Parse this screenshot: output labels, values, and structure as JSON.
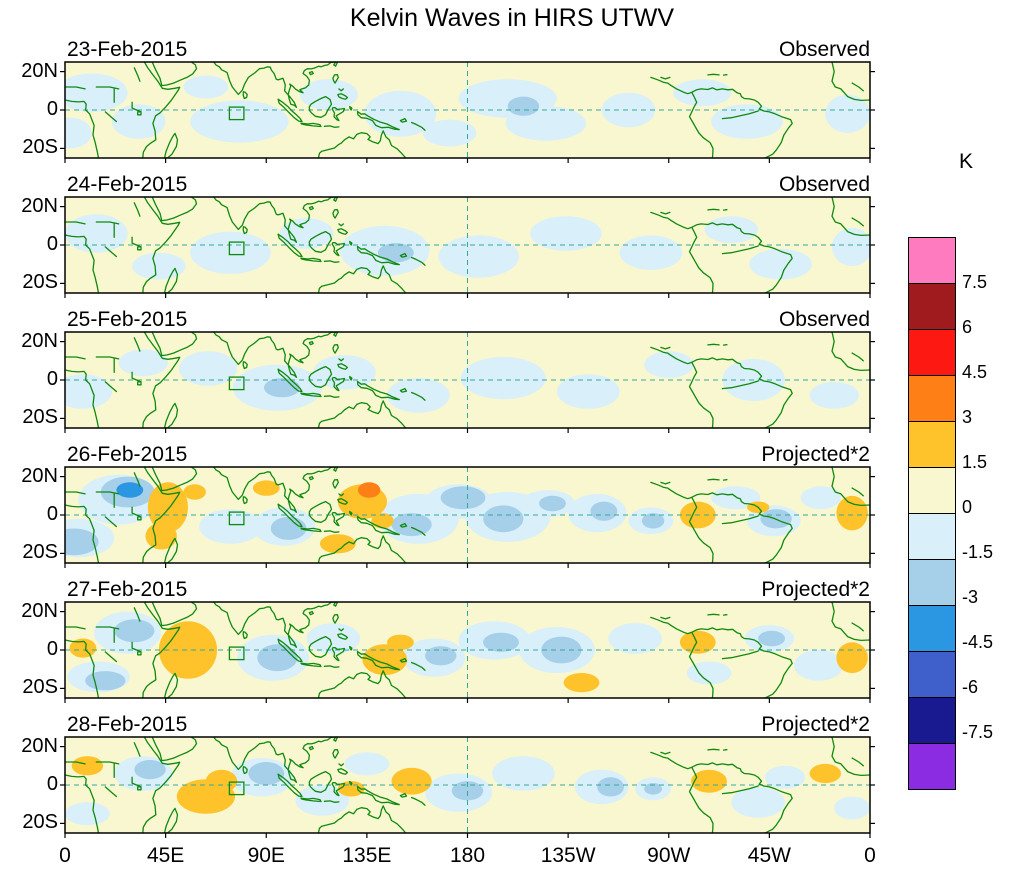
{
  "chart_data": {
    "type": "heatmap",
    "title": "Kelvin Waves in HIRS UTWV",
    "x_axis": {
      "tick_labels": [
        "0",
        "45E",
        "90E",
        "135E",
        "180",
        "135W",
        "90W",
        "45W",
        "0"
      ],
      "tick_lons": [
        0,
        45,
        90,
        135,
        180,
        225,
        270,
        315,
        360
      ]
    },
    "y_axis": {
      "tick_labels": [
        "20N",
        "0",
        "20S"
      ],
      "tick_lats": [
        20,
        0,
        -20
      ]
    },
    "colorbar": {
      "unit": "K",
      "tick_labels": [
        "7.5",
        "6",
        "4.5",
        "3",
        "1.5",
        "0",
        "-1.5",
        "-3",
        "-4.5",
        "-6",
        "-7.5"
      ],
      "colors": [
        "#ff7bc0",
        "#a01b1e",
        "#fd1812",
        "#fd7f16",
        "#fec32a",
        "#f9f7cf",
        "#d9effa",
        "#a6cfe9",
        "#2b96e2",
        "#3f5fcb",
        "#191a90",
        "#8b2be2"
      ]
    },
    "map": {
      "lon_range": [
        0,
        360
      ],
      "lat_range": [
        -25,
        25
      ],
      "roi_box_lon": [
        73.5,
        80
      ],
      "roi_box_lat": [
        -5,
        1.5
      ],
      "coast_color": "#0f8a0f",
      "grid_color": "#35a89c"
    },
    "anomalies_encoding": "each anomaly = [lon_deg_east, lat_deg, rx_deg, ry_deg, level]; level*1.5K color band, estimated from contour fills",
    "panels": [
      {
        "date": "23-Feb-2015",
        "source_label": "Observed",
        "anomalies": [
          [
            12,
            9,
            16,
            10,
            -1
          ],
          [
            2,
            -12,
            10,
            8,
            -1
          ],
          [
            33,
            -6,
            12,
            9,
            -1
          ],
          [
            63,
            12,
            10,
            6,
            -1
          ],
          [
            78,
            -6,
            22,
            11,
            -1
          ],
          [
            118,
            8,
            13,
            8,
            -1
          ],
          [
            150,
            -2,
            16,
            12,
            -1
          ],
          [
            172,
            -12,
            12,
            7,
            -1
          ],
          [
            198,
            6,
            22,
            10,
            -1
          ],
          [
            215,
            -7,
            18,
            9,
            -1
          ],
          [
            205,
            2,
            7,
            5,
            -2
          ],
          [
            252,
            0,
            12,
            9,
            -1
          ],
          [
            285,
            9,
            13,
            7,
            -1
          ],
          [
            305,
            -6,
            16,
            9,
            -1
          ],
          [
            350,
            -2,
            10,
            10,
            -1
          ]
        ]
      },
      {
        "date": "24-Feb-2015",
        "source_label": "Observed",
        "anomalies": [
          [
            14,
            6,
            14,
            10,
            -1
          ],
          [
            42,
            -11,
            12,
            7,
            -1
          ],
          [
            74,
            -4,
            18,
            11,
            -1
          ],
          [
            108,
            6,
            12,
            8,
            -1
          ],
          [
            143,
            -3,
            20,
            13,
            -1
          ],
          [
            148,
            -4,
            8,
            5,
            -2
          ],
          [
            185,
            -6,
            18,
            11,
            -1
          ],
          [
            224,
            6,
            16,
            9,
            -1
          ],
          [
            262,
            -4,
            14,
            9,
            -1
          ],
          [
            298,
            8,
            12,
            7,
            -1
          ],
          [
            320,
            -10,
            14,
            8,
            -1
          ],
          [
            352,
            -1,
            9,
            10,
            -1
          ]
        ]
      },
      {
        "date": "25-Feb-2015",
        "source_label": "Observed",
        "anomalies": [
          [
            8,
            -6,
            13,
            9,
            -1
          ],
          [
            35,
            9,
            11,
            7,
            -1
          ],
          [
            64,
            6,
            13,
            9,
            -1
          ],
          [
            95,
            -4,
            20,
            12,
            -1
          ],
          [
            97,
            -4,
            8,
            5,
            -2
          ],
          [
            125,
            4,
            14,
            9,
            -1
          ],
          [
            158,
            -8,
            14,
            9,
            -1
          ],
          [
            196,
            1,
            19,
            11,
            -1
          ],
          [
            234,
            -6,
            14,
            9,
            -1
          ],
          [
            270,
            8,
            11,
            7,
            -1
          ],
          [
            308,
            0,
            14,
            11,
            -1
          ],
          [
            344,
            -8,
            11,
            7,
            -1
          ]
        ]
      },
      {
        "date": "26-Feb-2015",
        "source_label": "Projected*2",
        "anomalies": [
          [
            24,
            8,
            18,
            13,
            -1
          ],
          [
            28,
            12,
            12,
            8,
            -2
          ],
          [
            29,
            13,
            6,
            4,
            -3
          ],
          [
            6,
            -12,
            16,
            10,
            -1
          ],
          [
            4,
            -14,
            11,
            7,
            -2
          ],
          [
            74,
            -6,
            14,
            9,
            -1
          ],
          [
            98,
            -6,
            14,
            10,
            -1
          ],
          [
            100,
            -7,
            8,
            6,
            -2
          ],
          [
            158,
            -2,
            18,
            13,
            -1
          ],
          [
            155,
            -5,
            9,
            6,
            -2
          ],
          [
            176,
            7,
            15,
            9,
            -1
          ],
          [
            178,
            9,
            10,
            6,
            -2
          ],
          [
            198,
            -1,
            19,
            13,
            -1
          ],
          [
            196,
            -2,
            9,
            7,
            -2
          ],
          [
            216,
            6,
            12,
            7,
            -1
          ],
          [
            218,
            6,
            6,
            4,
            -2
          ],
          [
            238,
            1,
            13,
            10,
            -1
          ],
          [
            241,
            2,
            6,
            5,
            -2
          ],
          [
            262,
            -3,
            10,
            7,
            -1
          ],
          [
            263,
            -3,
            5,
            4,
            -2
          ],
          [
            300,
            9,
            11,
            6,
            -1
          ],
          [
            317,
            -3,
            12,
            8,
            -1
          ],
          [
            318,
            -2,
            7,
            5,
            -2
          ],
          [
            338,
            9,
            9,
            6,
            -1
          ],
          [
            46,
            4,
            9,
            13,
            2
          ],
          [
            43,
            -11,
            7,
            7,
            2
          ],
          [
            58,
            12,
            5,
            4,
            2
          ],
          [
            90,
            14,
            6,
            4,
            2
          ],
          [
            133,
            7,
            11,
            9,
            2
          ],
          [
            136,
            13,
            5,
            4,
            3
          ],
          [
            122,
            -15,
            8,
            5,
            2
          ],
          [
            142,
            -3,
            5,
            4,
            2
          ],
          [
            283,
            0,
            8,
            7,
            2
          ],
          [
            310,
            4,
            5,
            3,
            2
          ],
          [
            352,
            1,
            7,
            9,
            2
          ]
        ]
      },
      {
        "date": "27-Feb-2015",
        "source_label": "Projected*2",
        "anomalies": [
          [
            28,
            9,
            15,
            11,
            -1
          ],
          [
            31,
            10,
            9,
            6,
            -2
          ],
          [
            15,
            -14,
            14,
            8,
            -1
          ],
          [
            18,
            -16,
            9,
            5,
            -2
          ],
          [
            93,
            -4,
            16,
            12,
            -1
          ],
          [
            95,
            -4,
            9,
            7,
            -2
          ],
          [
            120,
            6,
            12,
            8,
            -1
          ],
          [
            165,
            -4,
            14,
            10,
            -1
          ],
          [
            168,
            -3,
            7,
            5,
            -2
          ],
          [
            192,
            5,
            16,
            10,
            -1
          ],
          [
            195,
            4,
            8,
            5,
            -2
          ],
          [
            220,
            0,
            17,
            12,
            -1
          ],
          [
            222,
            0,
            9,
            7,
            -2
          ],
          [
            255,
            6,
            12,
            8,
            -1
          ],
          [
            288,
            -12,
            10,
            6,
            -1
          ],
          [
            315,
            6,
            11,
            7,
            -1
          ],
          [
            316,
            6,
            6,
            4,
            -2
          ],
          [
            337,
            -8,
            11,
            8,
            -1
          ],
          [
            55,
            0,
            13,
            15,
            2
          ],
          [
            8,
            1,
            6,
            5,
            2
          ],
          [
            143,
            -5,
            10,
            8,
            2
          ],
          [
            150,
            4,
            6,
            4,
            2
          ],
          [
            231,
            -17,
            8,
            5,
            2
          ],
          [
            283,
            4,
            8,
            6,
            2
          ],
          [
            352,
            -4,
            7,
            8,
            2
          ]
        ]
      },
      {
        "date": "28-Feb-2015",
        "source_label": "Projected*2",
        "anomalies": [
          [
            35,
            6,
            13,
            9,
            -1
          ],
          [
            38,
            8,
            7,
            5,
            -2
          ],
          [
            10,
            -15,
            10,
            6,
            -1
          ],
          [
            88,
            4,
            14,
            10,
            -1
          ],
          [
            90,
            6,
            8,
            6,
            -2
          ],
          [
            115,
            -8,
            12,
            8,
            -1
          ],
          [
            135,
            11,
            10,
            6,
            -1
          ],
          [
            176,
            -4,
            15,
            10,
            -1
          ],
          [
            180,
            -3,
            7,
            5,
            -2
          ],
          [
            205,
            6,
            14,
            9,
            -1
          ],
          [
            240,
            -1,
            12,
            9,
            -1
          ],
          [
            244,
            -1,
            6,
            5,
            -2
          ],
          [
            263,
            -2,
            8,
            6,
            -1
          ],
          [
            263,
            -2,
            4,
            3,
            -2
          ],
          [
            310,
            -9,
            12,
            8,
            -1
          ],
          [
            322,
            4,
            9,
            6,
            -1
          ],
          [
            352,
            -12,
            8,
            6,
            -1
          ],
          [
            63,
            -6,
            13,
            9,
            2
          ],
          [
            70,
            2,
            7,
            6,
            2
          ],
          [
            10,
            10,
            7,
            5,
            2
          ],
          [
            128,
            -2,
            6,
            4,
            2
          ],
          [
            155,
            2,
            9,
            7,
            2
          ],
          [
            288,
            2,
            8,
            6,
            2
          ],
          [
            340,
            6,
            7,
            5,
            2
          ]
        ]
      }
    ]
  }
}
